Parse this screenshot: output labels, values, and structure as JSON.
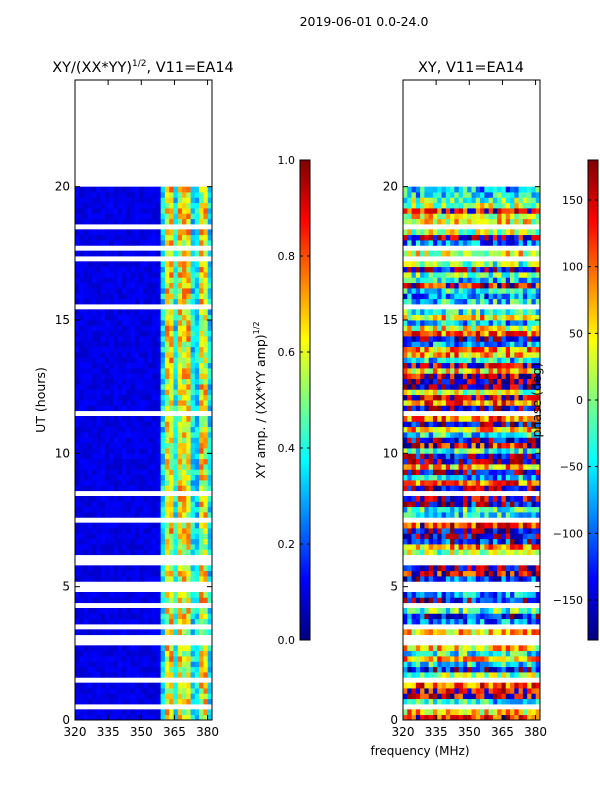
{
  "figure": {
    "suptitle": "2019-06-01 0.0-24.0",
    "shared_xlabel": "frequency (MHz)"
  },
  "chart_data": [
    {
      "type": "heatmap",
      "title": "XY/(XX*YY)",
      "title_superscript": "1/2",
      "title_suffix": ", V11=EA14",
      "xlabel": "",
      "ylabel": "UT (hours)",
      "xlim": [
        320,
        382
      ],
      "ylim": [
        0,
        24
      ],
      "x_ticks": [
        "320",
        "335",
        "350",
        "365",
        "380"
      ],
      "y_ticks": [
        "0",
        "5",
        "10",
        "15",
        "20"
      ],
      "data_extent_hours": [
        0,
        20
      ],
      "colorbar": {
        "label_main": "XY amp. / (XX*YY amp)",
        "label_sup": "1/2",
        "range": [
          0.0,
          1.0
        ],
        "ticks": [
          "0.0",
          "0.2",
          "0.4",
          "0.6",
          "0.8",
          "1.0"
        ]
      },
      "bright_channels_mhz": [
        363,
        369,
        378
      ],
      "blank_hours": [
        0.5,
        1.5,
        3.0,
        3.5,
        4.2,
        5.0,
        6.0,
        7.5,
        8.5,
        11.5,
        15.5,
        17.2,
        17.6,
        18.5
      ]
    },
    {
      "type": "heatmap",
      "title": "XY, V11=EA14",
      "xlabel": "frequency (MHz)",
      "ylabel": "",
      "xlim": [
        320,
        382
      ],
      "ylim": [
        0,
        24
      ],
      "x_ticks": [
        "320",
        "335",
        "350",
        "365",
        "380"
      ],
      "y_ticks": [
        "0",
        "5",
        "10",
        "15",
        "20"
      ],
      "data_extent_hours": [
        0,
        20
      ],
      "colorbar": {
        "label_main": "phase (deg)",
        "range": [
          -180,
          180
        ],
        "ticks": [
          "−150",
          "−100",
          "−50",
          "0",
          "50",
          "100",
          "150"
        ]
      },
      "blank_hours": [
        0.5,
        1.5,
        3.0,
        3.5,
        4.2,
        5.0,
        6.0,
        7.5,
        8.5,
        11.5,
        15.5,
        17.2,
        17.6,
        18.5
      ]
    }
  ]
}
